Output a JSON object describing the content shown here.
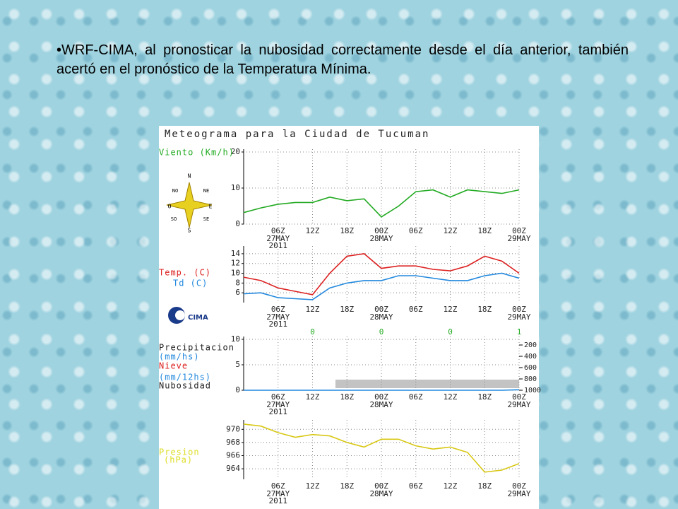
{
  "slide": {
    "bullet": "WRF-CIMA, al pronosticar la nubosidad correctamente desde el día anterior, también acertó en el pronóstico de la Temperatura Mínima."
  },
  "meteogram": {
    "title": "Meteograma para la Ciudad de Tucuman",
    "compass": [
      "N",
      "NO",
      "NE",
      "O",
      "E",
      "SO",
      "SE",
      "S"
    ],
    "logo": "CIMA"
  },
  "chart_data": [
    {
      "type": "line",
      "side_labels": [
        {
          "text": "Viento (Km/h)",
          "color": "#22aa22"
        }
      ],
      "xlim": [
        0,
        48
      ],
      "ylim": [
        0,
        20
      ],
      "yticks": [
        0,
        10,
        20
      ],
      "grid": true,
      "xticks": [
        {
          "value": 6,
          "label": "06Z"
        },
        {
          "value": 12,
          "label": "12Z"
        },
        {
          "value": 18,
          "label": "18Z"
        },
        {
          "value": 24,
          "label": "00Z"
        },
        {
          "value": 30,
          "label": "06Z"
        },
        {
          "value": 36,
          "label": "12Z"
        },
        {
          "value": 42,
          "label": "18Z"
        },
        {
          "value": 48,
          "label": "00Z"
        }
      ],
      "date_labels": [
        {
          "value": 6,
          "label": "27MAY"
        },
        {
          "value": 24,
          "label": "28MAY"
        },
        {
          "value": 48,
          "label": "29MAY"
        }
      ],
      "year_label": {
        "value": 6,
        "label": "2011"
      },
      "x": [
        0,
        3,
        6,
        9,
        12,
        15,
        18,
        21,
        24,
        27,
        30,
        33,
        36,
        39,
        42,
        45,
        48
      ],
      "series": [
        {
          "color": "#22aa22",
          "values": [
            3.2,
            4.5,
            5.5,
            6,
            6,
            7.5,
            6.5,
            7,
            2,
            5,
            9,
            9.5,
            7.5,
            9.5,
            9,
            8.5,
            9.5
          ]
        }
      ]
    },
    {
      "type": "line",
      "side_labels": [
        {
          "text": "Temp. (C)",
          "color": "#dd2222"
        },
        {
          "text": "Td (C)",
          "color": "#2288dd"
        }
      ],
      "xlim": [
        0,
        48
      ],
      "ylim": [
        4,
        15
      ],
      "yticks": [
        6,
        8,
        10,
        12,
        14
      ],
      "grid": true,
      "xticks": [
        {
          "value": 6,
          "label": "06Z"
        },
        {
          "value": 12,
          "label": "12Z"
        },
        {
          "value": 18,
          "label": "18Z"
        },
        {
          "value": 24,
          "label": "00Z"
        },
        {
          "value": 30,
          "label": "06Z"
        },
        {
          "value": 36,
          "label": "12Z"
        },
        {
          "value": 42,
          "label": "18Z"
        },
        {
          "value": 48,
          "label": "00Z"
        }
      ],
      "date_labels": [
        {
          "value": 6,
          "label": "27MAY"
        },
        {
          "value": 24,
          "label": "28MAY"
        },
        {
          "value": 48,
          "label": "29MAY"
        }
      ],
      "year_label": {
        "value": 6,
        "label": "2011"
      },
      "x": [
        0,
        3,
        6,
        9,
        12,
        15,
        18,
        21,
        24,
        27,
        30,
        33,
        36,
        39,
        42,
        45,
        48
      ],
      "series": [
        {
          "color": "#dd2222",
          "values": [
            9.2,
            8.5,
            7,
            6.3,
            5.6,
            10,
            13.5,
            14,
            11,
            11.5,
            11.5,
            10.8,
            10.5,
            11.5,
            13.5,
            12.5,
            10
          ]
        },
        {
          "color": "#2288dd",
          "values": [
            5.8,
            6,
            5,
            4.8,
            4.6,
            7,
            8,
            8.5,
            8.5,
            9.5,
            9.5,
            9,
            8.5,
            8.5,
            9.5,
            10,
            9
          ]
        }
      ]
    },
    {
      "type": "line",
      "side_labels": [
        {
          "text": "Precipitacion",
          "color": "#222222"
        },
        {
          "text": "(mm/hs)",
          "color": "#2288dd"
        },
        {
          "text": "Nieve",
          "color": "#dd2222"
        },
        {
          "text": "(mm/12hs)",
          "color": "#2288dd"
        },
        {
          "text": "Nubosidad",
          "color": "#222222"
        }
      ],
      "xlim": [
        0,
        48
      ],
      "ylim": [
        0,
        10
      ],
      "yticks": [
        0,
        5,
        10
      ],
      "grid": true,
      "y2lim": [
        1000,
        100
      ],
      "y2ticks": [
        200,
        400,
        600,
        800,
        1000
      ],
      "accum_labels": {
        "x": [
          12,
          24,
          36,
          48
        ],
        "values": [
          0,
          0,
          0,
          1
        ]
      },
      "xticks": [
        {
          "value": 6,
          "label": "06Z"
        },
        {
          "value": 12,
          "label": "12Z"
        },
        {
          "value": 18,
          "label": "18Z"
        },
        {
          "value": 24,
          "label": "00Z"
        },
        {
          "value": 30,
          "label": "06Z"
        },
        {
          "value": 36,
          "label": "12Z"
        },
        {
          "value": 42,
          "label": "18Z"
        },
        {
          "value": 48,
          "label": "00Z"
        }
      ],
      "date_labels": [
        {
          "value": 6,
          "label": "27MAY"
        },
        {
          "value": 24,
          "label": "28MAY"
        },
        {
          "value": 48,
          "label": "29MAY"
        }
      ],
      "year_label": {
        "value": 6,
        "label": "2011"
      },
      "x": [
        0,
        3,
        6,
        9,
        12,
        15,
        18,
        21,
        24,
        27,
        30,
        33,
        36,
        39,
        42,
        45,
        48
      ],
      "series": [
        {
          "color": "#2288dd",
          "values": [
            0,
            0,
            0,
            0,
            0,
            0,
            0,
            0,
            0,
            0,
            0,
            0,
            0,
            0,
            0,
            0,
            0.1
          ]
        }
      ]
    },
    {
      "type": "line",
      "side_labels": [
        {
          "text": "Presion",
          "color": "#dddd22"
        },
        {
          "text": "(hPa)",
          "color": "#dddd22"
        }
      ],
      "xlim": [
        0,
        48
      ],
      "ylim": [
        962.4,
        971
      ],
      "yticks": [
        964,
        966,
        968,
        970
      ],
      "grid": true,
      "xticks": [
        {
          "value": 6,
          "label": "06Z"
        },
        {
          "value": 12,
          "label": "12Z"
        },
        {
          "value": 18,
          "label": "18Z"
        },
        {
          "value": 24,
          "label": "00Z"
        },
        {
          "value": 30,
          "label": "06Z"
        },
        {
          "value": 36,
          "label": "12Z"
        },
        {
          "value": 42,
          "label": "18Z"
        },
        {
          "value": 48,
          "label": "00Z"
        }
      ],
      "date_labels": [
        {
          "value": 6,
          "label": "27MAY"
        },
        {
          "value": 24,
          "label": "28MAY"
        },
        {
          "value": 48,
          "label": "29MAY"
        }
      ],
      "year_label": {
        "value": 6,
        "label": "2011"
      },
      "x": [
        0,
        3,
        6,
        9,
        12,
        15,
        18,
        21,
        24,
        27,
        30,
        33,
        36,
        39,
        42,
        45,
        48
      ],
      "series": [
        {
          "color": "#d8c814",
          "values": [
            970.8,
            970.5,
            969.5,
            968.8,
            969.2,
            969,
            968,
            967.3,
            968.5,
            968.5,
            967.5,
            967,
            967.3,
            966.5,
            963.5,
            963.8,
            964.8
          ]
        }
      ]
    }
  ]
}
